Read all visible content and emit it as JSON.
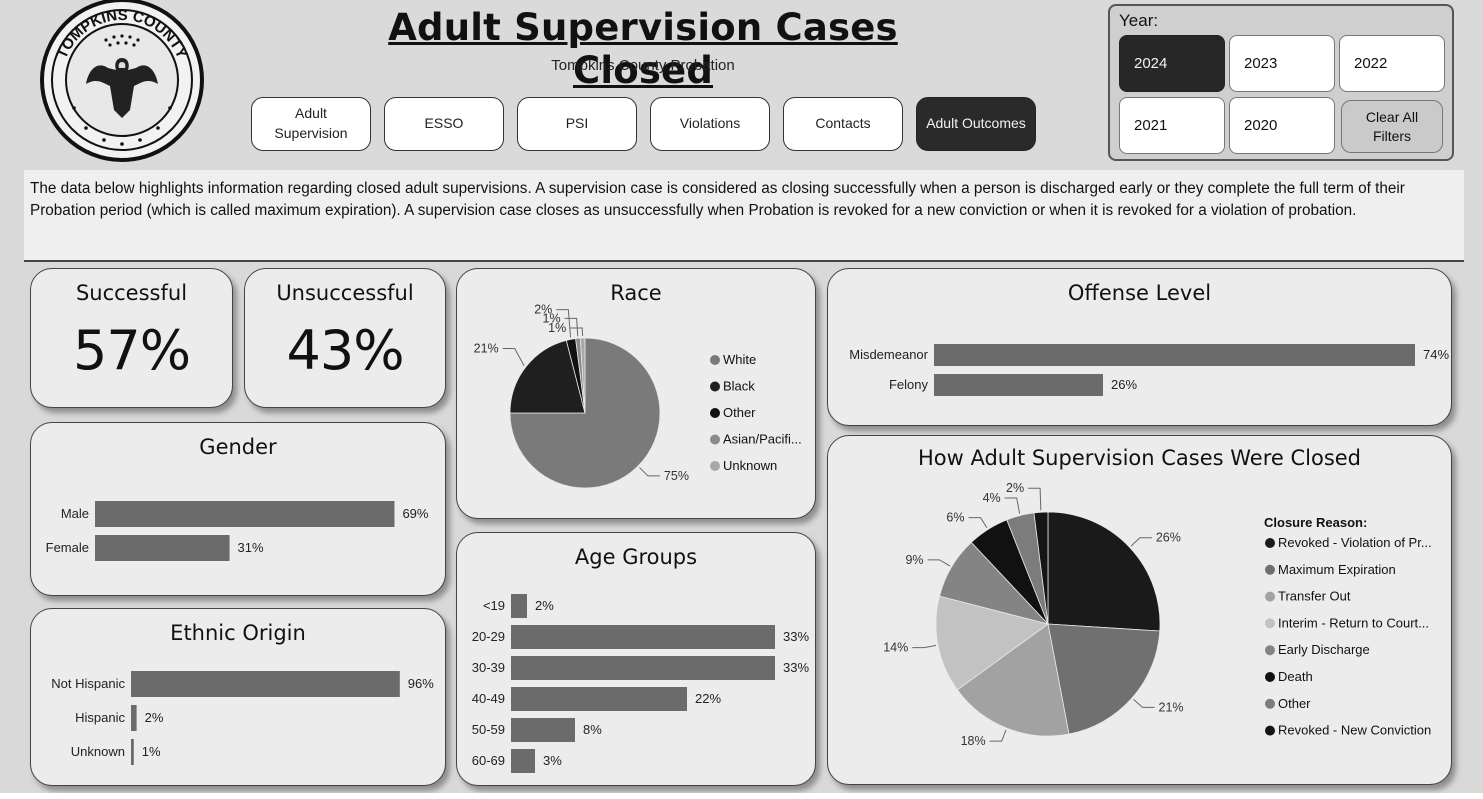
{
  "header": {
    "title": "Adult Supervision Cases Closed",
    "subtitle": "Tompkins County Probation",
    "seal_text": "TOMPKINS COUNTY"
  },
  "nav": {
    "buttons": [
      {
        "label": "Adult Supervision",
        "active": false
      },
      {
        "label": "ESSO",
        "active": false
      },
      {
        "label": "PSI",
        "active": false
      },
      {
        "label": "Violations",
        "active": false
      },
      {
        "label": "Contacts",
        "active": false
      },
      {
        "label": "Adult Outcomes",
        "active": true
      }
    ]
  },
  "year_filter": {
    "label": "Year:",
    "years": [
      {
        "label": "2024",
        "active": true
      },
      {
        "label": "2023",
        "active": false
      },
      {
        "label": "2022",
        "active": false
      },
      {
        "label": "2021",
        "active": false
      },
      {
        "label": "2020",
        "active": false
      }
    ],
    "clear_label": "Clear All Filters"
  },
  "description": "The data below highlights information regarding closed adult supervisions. A supervision case is considered as closing successfully when a person is discharged early or they complete the full term of their Probation period (which is called maximum expiration). A supervision case closes as unsuccessfully when Probation is revoked for a new conviction or when it is revoked for a violation of probation.",
  "kpis": {
    "successful": {
      "label": "Successful",
      "value": "57%"
    },
    "unsuccessful": {
      "label": "Unsuccessful",
      "value": "43%"
    }
  },
  "colors": {
    "bar": "#6b6b6b",
    "card_bg": "#ececec",
    "active_button": "#2a2a2a"
  },
  "chart_data": [
    {
      "id": "gender",
      "type": "bar",
      "orientation": "horizontal",
      "title": "Gender",
      "categories": [
        "Male",
        "Female"
      ],
      "values": [
        69,
        31
      ],
      "labels": [
        "69%",
        "31%"
      ]
    },
    {
      "id": "ethnic",
      "type": "bar",
      "orientation": "horizontal",
      "title": "Ethnic Origin",
      "categories": [
        "Not Hispanic",
        "Hispanic",
        "Unknown"
      ],
      "values": [
        96,
        2,
        1
      ],
      "labels": [
        "96%",
        "2%",
        "1%"
      ]
    },
    {
      "id": "race",
      "type": "pie",
      "title": "Race",
      "categories": [
        "White",
        "Black",
        "Other",
        "Asian/Pacifi...",
        "Unknown"
      ],
      "values": [
        75,
        21,
        2,
        1,
        1
      ],
      "labels": [
        "75%",
        "21%",
        "2%",
        "1%",
        "1%"
      ],
      "colors": [
        "#7a7a7a",
        "#1f1f1f",
        "#111111",
        "#8a8a8a",
        "#a8a8a8"
      ]
    },
    {
      "id": "age",
      "type": "bar",
      "orientation": "horizontal",
      "title": "Age Groups",
      "categories": [
        "<19",
        "20-29",
        "30-39",
        "40-49",
        "50-59",
        "60-69"
      ],
      "values": [
        2,
        33,
        33,
        22,
        8,
        3
      ],
      "labels": [
        "2%",
        "33%",
        "33%",
        "22%",
        "8%",
        "3%"
      ]
    },
    {
      "id": "offense",
      "type": "bar",
      "orientation": "horizontal",
      "title": "Offense Level",
      "categories": [
        "Misdemeanor",
        "Felony"
      ],
      "values": [
        74,
        26
      ],
      "labels": [
        "74%",
        "26%"
      ]
    },
    {
      "id": "closure",
      "type": "pie",
      "title": "How Adult Supervision Cases Were Closed",
      "legend_title": "Closure Reason:",
      "categories": [
        "Revoked - Violation of Pr...",
        "Maximum Expiration",
        "Transfer Out",
        "Interim - Return to Court...",
        "Early Discharge",
        "Death",
        "Other",
        "Revoked - New Conviction"
      ],
      "values": [
        26,
        21,
        18,
        14,
        9,
        6,
        4,
        2
      ],
      "labels": [
        "26%",
        "21%",
        "18%",
        "14%",
        "9%",
        "6%",
        "4%",
        "2%"
      ],
      "colors": [
        "#1a1a1a",
        "#707070",
        "#a2a2a2",
        "#c2c2c2",
        "#848484",
        "#111111",
        "#7c7c7c",
        "#151515"
      ]
    }
  ]
}
